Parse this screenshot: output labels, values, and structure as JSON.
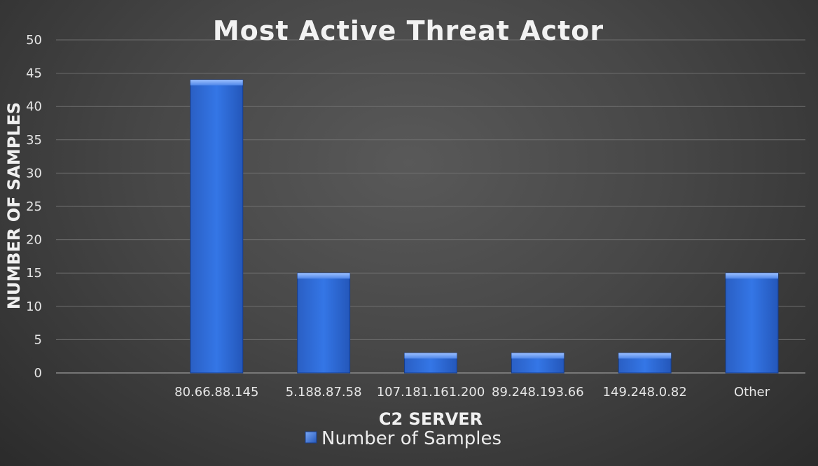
{
  "chart_data": {
    "type": "bar",
    "title": "Most Active Threat Actor",
    "xlabel": "C2 SERVER",
    "ylabel": "NUMBER OF SAMPLES",
    "categories": [
      "",
      "80.66.88.145",
      "5.188.87.58",
      "107.181.161.200",
      "89.248.193.66",
      "149.248.0.82",
      "Other"
    ],
    "series": [
      {
        "name": "Number of Samples",
        "values": [
          0,
          44,
          15,
          3,
          3,
          3,
          15
        ]
      }
    ],
    "ylim": [
      0,
      50
    ],
    "yticks": [
      0,
      5,
      10,
      15,
      20,
      25,
      30,
      35,
      40,
      45,
      50
    ],
    "grid": true,
    "legend_position": "bottom",
    "colors": {
      "bar": "#2f6fdc",
      "bar_light": "#5a93f0",
      "bar_dark": "#1f4fa8"
    }
  }
}
